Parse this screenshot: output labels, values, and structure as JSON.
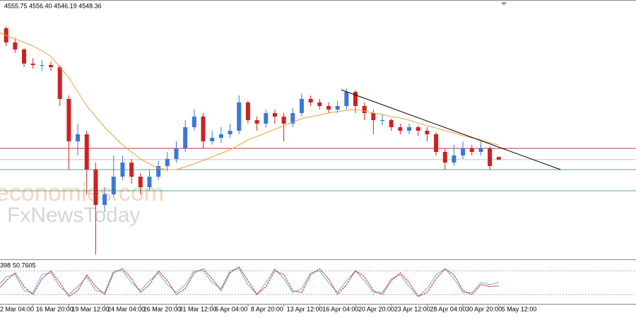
{
  "chart_data": {
    "type": "candlestick",
    "ohlc_header": "4555.75 4556.40 4546.19 4548.36",
    "watermarks": [
      "economies.com",
      "FxNewsToday"
    ],
    "up_color": "#3a78d8",
    "down_color": "#cc2222",
    "ylim": [
      4270,
      4970
    ],
    "categories": [
      "2 Mar 04:00",
      null,
      null,
      null,
      "16 Mar 20:00",
      null,
      null,
      null,
      "19 Mar 12:00",
      null,
      null,
      null,
      "24 Mar 04:00",
      null,
      null,
      null,
      "26 Mar 20:00",
      null,
      null,
      null,
      "31 Mar 12:00",
      null,
      null,
      null,
      "6 Apr 04:00",
      null,
      null,
      null,
      "8 Apr 20:00",
      null,
      null,
      null,
      "13 Apr 12:00",
      null,
      null,
      null,
      "16 Apr 04:00",
      null,
      null,
      null,
      "20 Apr 20:00",
      null,
      null,
      null,
      "23 Apr 12:00",
      null,
      null,
      null,
      "28 Apr 04:00",
      null,
      null,
      null,
      "30 Apr 20:00",
      null,
      null,
      null,
      "5 May 12:00"
    ],
    "candles": [
      [
        4930,
        4940,
        4905,
        4920
      ],
      [
        4920,
        4925,
        4870,
        4880
      ],
      [
        4880,
        4890,
        4850,
        4860
      ],
      [
        4860,
        4865,
        4810,
        4820
      ],
      [
        4820,
        4835,
        4805,
        4816
      ],
      [
        4816,
        4830,
        4800,
        4816
      ],
      [
        4816,
        4825,
        4800,
        4810
      ],
      [
        4810,
        4815,
        4700,
        4720
      ],
      [
        4720,
        4730,
        4520,
        4600
      ],
      [
        4600,
        4650,
        4560,
        4620
      ],
      [
        4620,
        4630,
        4450,
        4520
      ],
      [
        4520,
        4540,
        4280,
        4420
      ],
      [
        4420,
        4470,
        4400,
        4450
      ],
      [
        4450,
        4560,
        4440,
        4500
      ],
      [
        4500,
        4560,
        4490,
        4540
      ],
      [
        4540,
        4550,
        4480,
        4500
      ],
      [
        4500,
        4510,
        4450,
        4470
      ],
      [
        4470,
        4520,
        4460,
        4500
      ],
      [
        4500,
        4545,
        4490,
        4530
      ],
      [
        4530,
        4570,
        4515,
        4550
      ],
      [
        4550,
        4600,
        4540,
        4580
      ],
      [
        4580,
        4660,
        4570,
        4640
      ],
      [
        4640,
        4690,
        4630,
        4670
      ],
      [
        4670,
        4680,
        4580,
        4600
      ],
      [
        4600,
        4630,
        4590,
        4610
      ],
      [
        4610,
        4640,
        4595,
        4620
      ],
      [
        4620,
        4650,
        4610,
        4630
      ],
      [
        4630,
        4730,
        4620,
        4710
      ],
      [
        4710,
        4715,
        4650,
        4660
      ],
      [
        4660,
        4670,
        4630,
        4650
      ],
      [
        4650,
        4690,
        4640,
        4680
      ],
      [
        4680,
        4690,
        4650,
        4670
      ],
      [
        4670,
        4680,
        4600,
        4650
      ],
      [
        4650,
        4695,
        4640,
        4680
      ],
      [
        4680,
        4735,
        4670,
        4720
      ],
      [
        4720,
        4730,
        4700,
        4710
      ],
      [
        4710,
        4720,
        4690,
        4700
      ],
      [
        4700,
        4710,
        4680,
        4690
      ],
      [
        4690,
        4715,
        4680,
        4700
      ],
      [
        4700,
        4750,
        4690,
        4740
      ],
      [
        4740,
        4745,
        4680,
        4700
      ],
      [
        4700,
        4710,
        4660,
        4680
      ],
      [
        4680,
        4690,
        4620,
        4660
      ],
      [
        4660,
        4675,
        4645,
        4660
      ],
      [
        4660,
        4665,
        4630,
        4640
      ],
      [
        4640,
        4650,
        4620,
        4630
      ],
      [
        4630,
        4650,
        4620,
        4640
      ],
      [
        4640,
        4645,
        4615,
        4630
      ],
      [
        4630,
        4640,
        4600,
        4620
      ],
      [
        4620,
        4625,
        4560,
        4570
      ],
      [
        4570,
        4580,
        4520,
        4540
      ],
      [
        4540,
        4590,
        4530,
        4560
      ],
      [
        4560,
        4600,
        4550,
        4580
      ],
      [
        4580,
        4590,
        4560,
        4570
      ],
      [
        4570,
        4600,
        4560,
        4580
      ],
      [
        4580,
        4585,
        4520,
        4530
      ],
      [
        4555.75,
        4556.4,
        4546.19,
        4548.36
      ]
    ],
    "ma": {
      "color": "#f0a040",
      "values": [
        4910,
        4900,
        4890,
        4880,
        4870,
        4856,
        4840,
        4810,
        4780,
        4740,
        4700,
        4670,
        4640,
        4614,
        4590,
        4570,
        4550,
        4536,
        4524,
        4520,
        4520,
        4528,
        4536,
        4546,
        4556,
        4566,
        4576,
        4590,
        4604,
        4614,
        4624,
        4634,
        4644,
        4654,
        4664,
        4670,
        4674,
        4680,
        4684,
        4688,
        4690,
        4686,
        4680,
        4676,
        4670,
        4666,
        4660,
        4652,
        4644,
        4638,
        4630,
        4624,
        4616,
        4610,
        4604,
        4596,
        4590
      ]
    },
    "hlines": [
      {
        "value": 4580,
        "color": "#b03a3a"
      },
      {
        "value": 4520,
        "color": "#5aaa88"
      },
      {
        "value": 4460,
        "color": "#5aaa88"
      }
    ],
    "trendline": {
      "color": "#000000",
      "x": [
        38.4,
        62.9
      ],
      "y": [
        4746,
        4520
      ]
    },
    "stochastic": {
      "header_fragment": "398",
      "ylim": [
        0,
        100
      ],
      "levels": [
        20,
        80
      ],
      "series": [
        {
          "color": "#6fa8dc",
          "values": [
            40,
            65,
            70,
            30,
            25,
            70,
            75,
            40,
            20,
            40,
            65,
            30,
            25,
            80,
            80,
            50,
            30,
            55,
            75,
            45,
            25,
            45,
            80,
            80,
            50,
            35,
            80,
            85,
            45,
            20,
            50,
            85,
            60,
            25,
            35,
            75,
            80,
            50,
            25,
            55,
            80,
            55,
            25,
            25,
            60,
            70,
            40,
            15,
            35,
            70,
            85,
            60,
            25,
            25,
            50,
            45,
            50.7605
          ]
        },
        {
          "color": "#cc2222",
          "values": [
            30,
            55,
            75,
            40,
            20,
            60,
            80,
            50,
            15,
            30,
            70,
            40,
            20,
            75,
            85,
            60,
            25,
            45,
            80,
            55,
            20,
            35,
            75,
            85,
            60,
            30,
            75,
            90,
            55,
            20,
            40,
            80,
            70,
            30,
            25,
            70,
            85,
            60,
            20,
            45,
            80,
            65,
            30,
            20,
            55,
            75,
            50,
            15,
            25,
            60,
            85,
            70,
            30,
            20,
            45,
            40,
            42
          ]
        }
      ]
    }
  }
}
